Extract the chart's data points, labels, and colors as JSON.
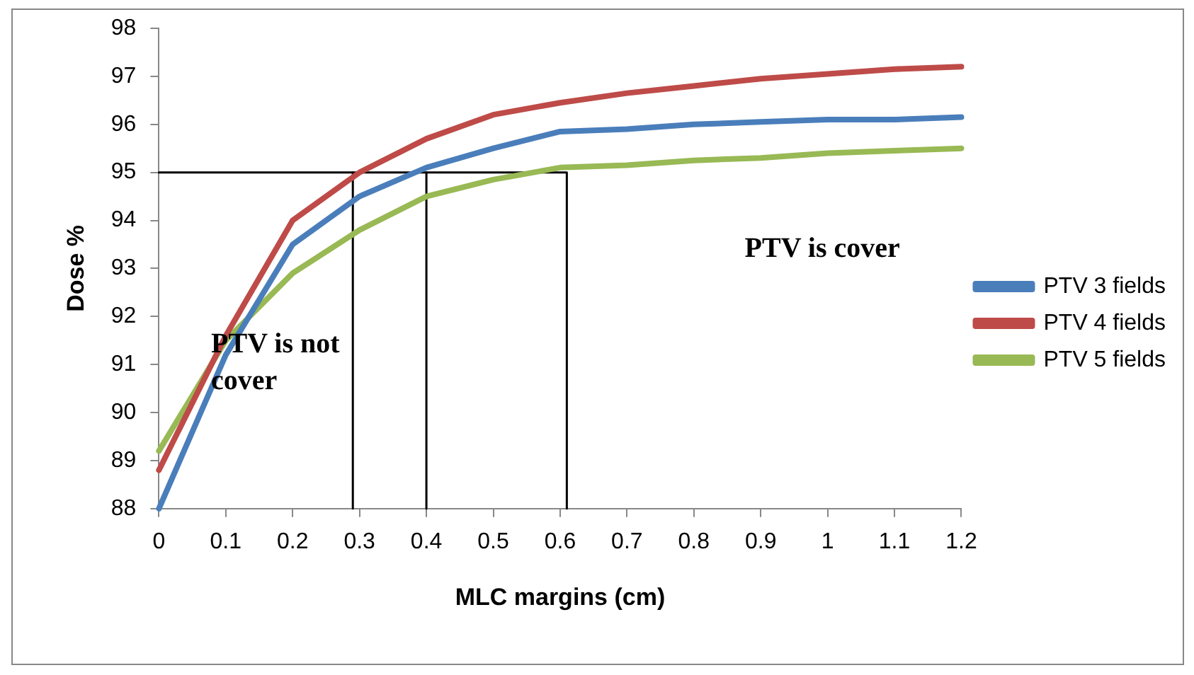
{
  "chart_data": {
    "type": "line",
    "xlabel": "MLC margins (cm)",
    "ylabel": "Dose %",
    "x": [
      0,
      0.1,
      0.2,
      0.3,
      0.4,
      0.5,
      0.6,
      0.7,
      0.8,
      0.9,
      1,
      1.1,
      1.2
    ],
    "series": [
      {
        "name": "PTV 3 fields",
        "color": "#4a7ebb",
        "values": [
          88.0,
          91.2,
          93.5,
          94.5,
          95.1,
          95.5,
          95.85,
          95.9,
          96.0,
          96.05,
          96.1,
          96.1,
          96.15
        ]
      },
      {
        "name": "PTV 4 fields",
        "color": "#be4b48",
        "values": [
          88.8,
          91.6,
          94.0,
          95.0,
          95.7,
          96.2,
          96.45,
          96.65,
          96.8,
          96.95,
          97.05,
          97.15,
          97.2
        ]
      },
      {
        "name": "PTV 5 fields",
        "color": "#98b954",
        "values": [
          89.2,
          91.5,
          92.9,
          93.8,
          94.5,
          94.85,
          95.1,
          95.15,
          95.25,
          95.3,
          95.4,
          95.45,
          95.5
        ]
      },
      {
        "color": "#000000",
        "x": [
          0,
          0.61,
          0.61
        ],
        "values": [
          95,
          95,
          88
        ]
      },
      {
        "color": "#000000",
        "x": [
          0.29,
          0.29
        ],
        "values": [
          95,
          88
        ]
      },
      {
        "color": "#000000",
        "x": [
          0.4,
          0.4
        ],
        "values": [
          95,
          88
        ]
      }
    ],
    "xlim": [
      0,
      1.2
    ],
    "xticks": [
      0,
      0.1,
      0.2,
      0.3,
      0.4,
      0.5,
      0.6,
      0.7,
      0.8,
      0.9,
      1,
      1.1,
      1.2
    ],
    "ylim": [
      88,
      98
    ],
    "yticks": [
      88,
      89,
      90,
      91,
      92,
      93,
      94,
      95,
      96,
      97,
      98
    ],
    "grid": false,
    "legend": "right",
    "marker": "none",
    "line_style": "solid",
    "annotations": [
      "PTV is not cover",
      "PTV is cover"
    ]
  }
}
